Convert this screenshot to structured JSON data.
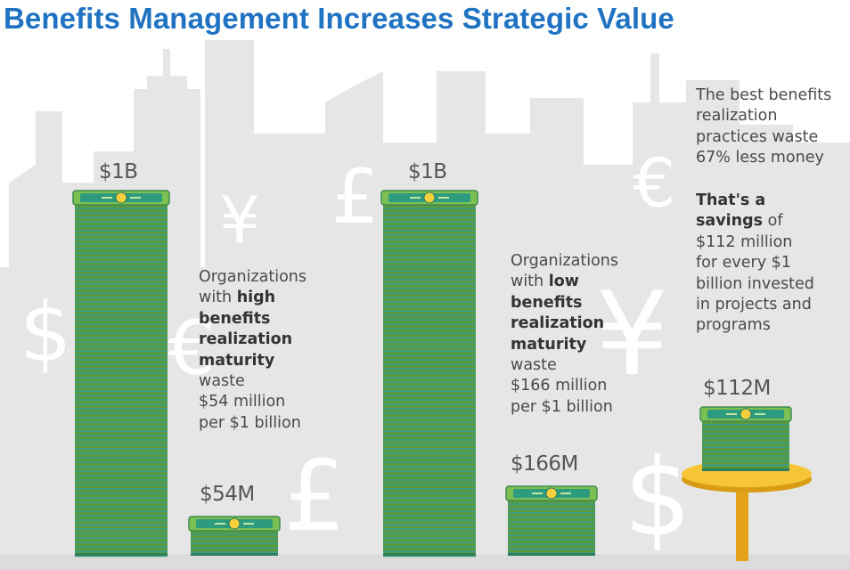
{
  "title": "Benefits Management Increases Strategic Value",
  "colors": {
    "title": "#1f73c2",
    "bill_green": "#6aa84f",
    "bill_stripe": "#3fa07a",
    "pedestal": "#f2c233",
    "skyline": "#e6e6e6"
  },
  "icons": [
    "dollar-sign-icon",
    "yen-sign-icon",
    "pound-sign-icon",
    "euro-sign-icon",
    "banknote-icon"
  ],
  "high": {
    "stack_label": "$1B",
    "waste_label": "$54M",
    "text": {
      "l1": "Organizations",
      "l2_a": "with ",
      "l2_b": "high",
      "l3": "benefits",
      "l4": "realization",
      "l5": "maturity",
      "l6": "waste",
      "l7": "$54 million",
      "l8": "per $1 billion"
    }
  },
  "low": {
    "stack_label": "$1B",
    "waste_label": "$166M",
    "text": {
      "l1": "Organizations",
      "l2_a": "with ",
      "l2_b": "low",
      "l3": "benefits",
      "l4": "realization",
      "l5": "maturity",
      "l6": "waste",
      "l7": "$166 million",
      "l8": "per $1 billion"
    }
  },
  "savings": {
    "label": "$112M",
    "intro": {
      "l1": "The best benefits",
      "l2": "realization",
      "l3": "practices waste",
      "l4": "67% less money"
    },
    "detail": {
      "l1": "That's a",
      "l2_b": "savings",
      "l2_a": " of",
      "l3": "$112 million",
      "l4": "for every $1",
      "l5": "billion invested",
      "l6": "in projects and",
      "l7": "programs"
    }
  }
}
